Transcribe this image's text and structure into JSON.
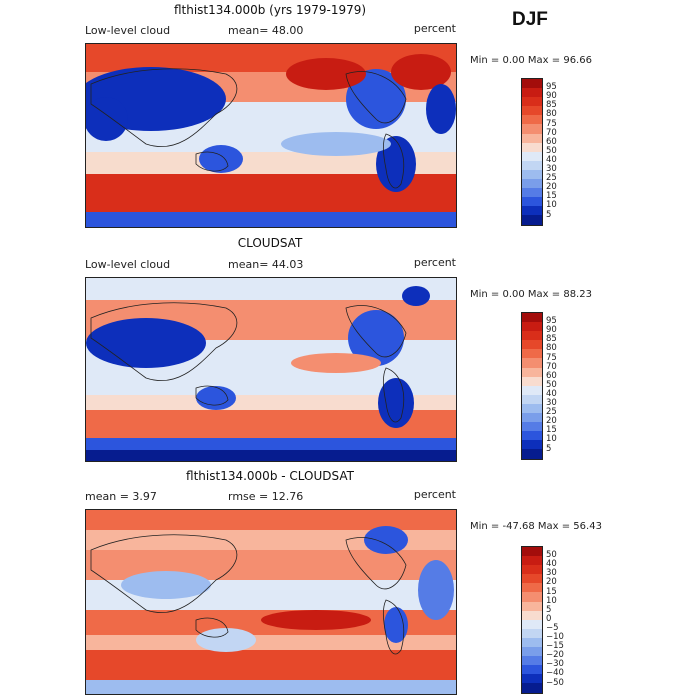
{
  "season": "DJF",
  "panels": [
    {
      "title": "flthist134.000b (yrs 1979-1979)",
      "left_label": "Low-level cloud",
      "center_label": "mean=  48.00",
      "right_label": "percent",
      "min_max": "Min =    0.00 Max =  96.66",
      "colorbar_labels": [
        "95",
        "90",
        "85",
        "80",
        "75",
        "70",
        "60",
        "50",
        "40",
        "30",
        "25",
        "20",
        "15",
        "10",
        "5"
      ],
      "colorbar_colors": [
        "#a30d0b",
        "#c81c12",
        "#d92e1a",
        "#e6482a",
        "#ef6a48",
        "#f48e70",
        "#f8b59c",
        "#f8dccf",
        "#dfe9f7",
        "#c2d6f3",
        "#9dbcef",
        "#7a9eea",
        "#557ce6",
        "#2c55dd",
        "#0d2fbb",
        "#061c8f"
      ]
    },
    {
      "title": "CLOUDSAT",
      "left_label": "Low-level cloud",
      "center_label": "mean=  44.03",
      "right_label": "percent",
      "min_max": "Min =    0.00 Max =  88.23",
      "colorbar_labels": [
        "95",
        "90",
        "85",
        "80",
        "75",
        "70",
        "60",
        "50",
        "40",
        "30",
        "25",
        "20",
        "15",
        "10",
        "5"
      ],
      "colorbar_colors": [
        "#a30d0b",
        "#c81c12",
        "#d92e1a",
        "#e6482a",
        "#ef6a48",
        "#f48e70",
        "#f8b59c",
        "#f8dccf",
        "#dfe9f7",
        "#c2d6f3",
        "#9dbcef",
        "#7a9eea",
        "#557ce6",
        "#2c55dd",
        "#0d2fbb",
        "#061c8f"
      ]
    },
    {
      "title": "flthist134.000b - CLOUDSAT",
      "left_label": "mean =    3.97",
      "center_label": "rmse =  12.76",
      "right_label": "percent",
      "min_max": "Min = -47.68 Max =  56.43",
      "colorbar_labels": [
        "50",
        "40",
        "30",
        "20",
        "15",
        "10",
        "5",
        "0",
        "−5",
        "−10",
        "−15",
        "−20",
        "−30",
        "−40",
        "−50"
      ],
      "colorbar_colors": [
        "#a30d0b",
        "#c81c12",
        "#d92e1a",
        "#e6482a",
        "#ef6a48",
        "#f48e70",
        "#f8b59c",
        "#f8dccf",
        "#dfe9f7",
        "#c2d6f3",
        "#9dbcef",
        "#7a9eea",
        "#557ce6",
        "#2c55dd",
        "#0d2fbb",
        "#061c8f"
      ]
    }
  ]
}
